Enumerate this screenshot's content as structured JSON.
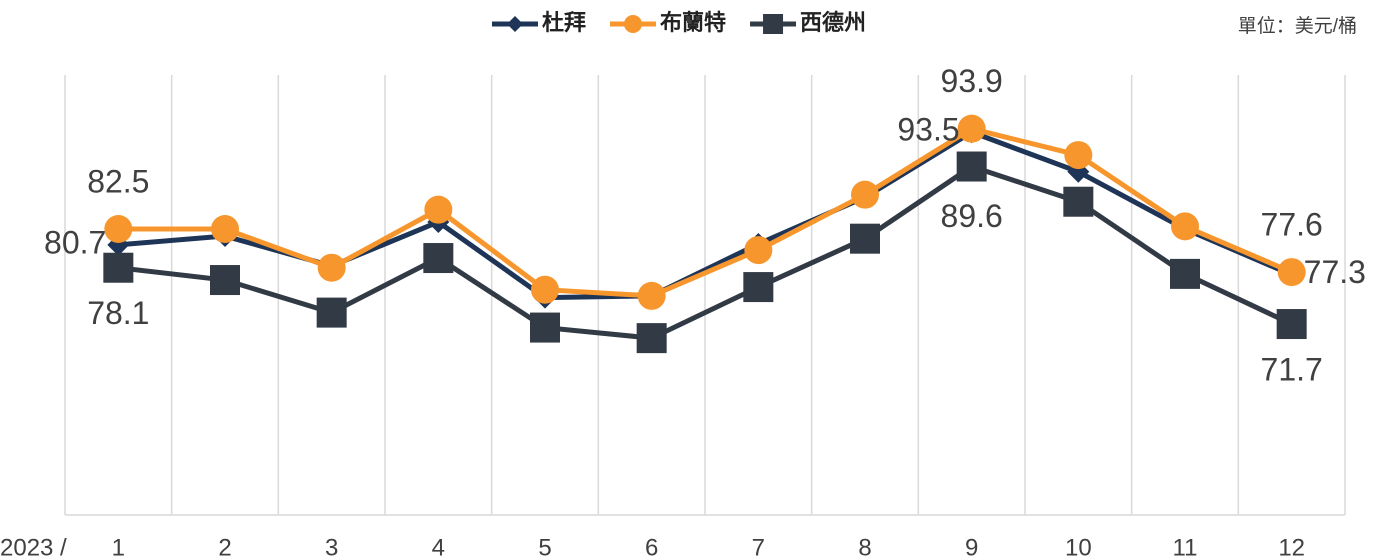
{
  "chart_data": {
    "type": "line",
    "unit_label": "單位：美元/桶",
    "x_prefix": "2023 /",
    "categories": [
      "1",
      "2",
      "3",
      "4",
      "5",
      "6",
      "7",
      "8",
      "9",
      "10",
      "11",
      "12"
    ],
    "ylim": [
      50,
      100
    ],
    "series": [
      {
        "name": "杜拜",
        "color": "#1f3557",
        "marker": "diamond",
        "values": [
          80.7,
          81.7,
          78.3,
          83.3,
          74.7,
          74.9,
          80.8,
          86.1,
          93.5,
          89.0,
          82.5,
          77.3
        ],
        "value_labels": [
          "80.7",
          null,
          null,
          null,
          null,
          null,
          null,
          null,
          "93.5",
          null,
          null,
          "77.3"
        ]
      },
      {
        "name": "布蘭特",
        "color": "#f7962d",
        "marker": "circle",
        "values": [
          82.5,
          82.5,
          78.1,
          84.7,
          75.6,
          74.9,
          80.1,
          86.4,
          93.9,
          90.9,
          82.8,
          77.6
        ],
        "value_labels": [
          "82.5",
          null,
          null,
          null,
          null,
          null,
          null,
          null,
          "93.9",
          null,
          null,
          "77.6"
        ]
      },
      {
        "name": "西德州",
        "color": "#323a45",
        "marker": "square",
        "values": [
          78.1,
          76.7,
          73.0,
          79.2,
          71.3,
          70.1,
          75.9,
          81.4,
          89.6,
          85.6,
          77.4,
          71.7
        ],
        "value_labels": [
          "78.1",
          null,
          null,
          null,
          null,
          null,
          null,
          null,
          "89.6",
          null,
          null,
          "71.7"
        ]
      }
    ],
    "grid": "vertical"
  }
}
